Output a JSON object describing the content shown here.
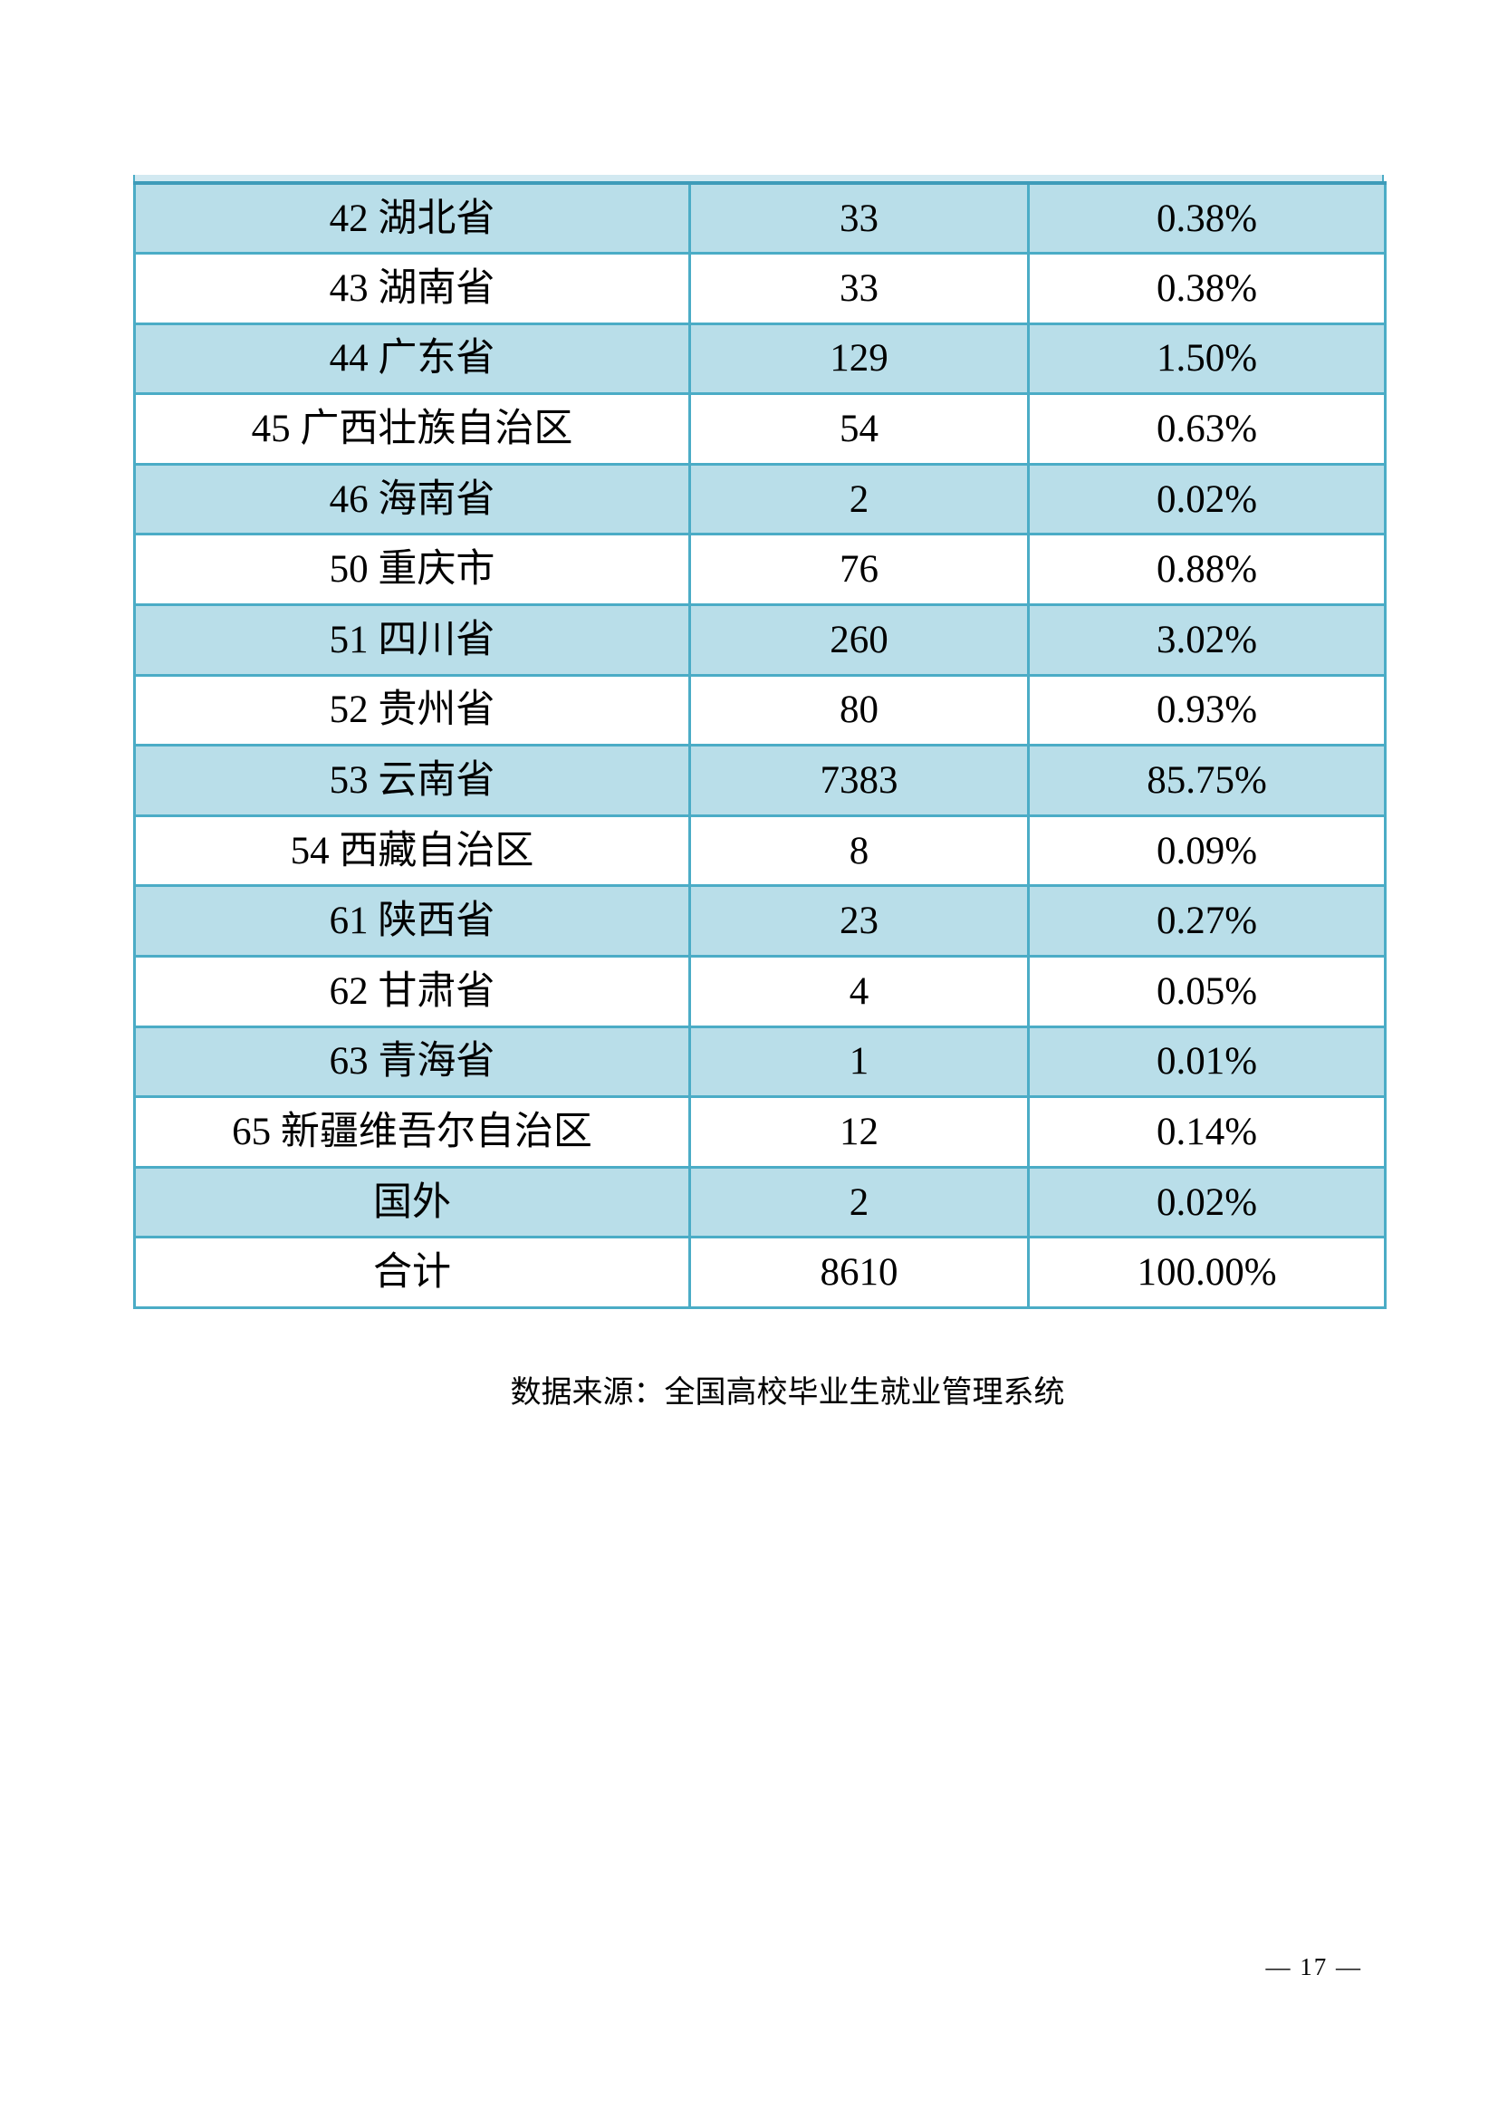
{
  "page": {
    "source_note": "数据来源：全国高校毕业生就业管理系统",
    "page_number": "— 17 —"
  },
  "colors": {
    "table_border": "#4BACC6",
    "shaded_row_fill": "#B9DEE9"
  },
  "table": {
    "columns": [
      "region",
      "count",
      "percent"
    ],
    "rows": [
      {
        "region": "42 湖北省",
        "count": "33",
        "percent": "0.38%"
      },
      {
        "region": "43 湖南省",
        "count": "33",
        "percent": "0.38%"
      },
      {
        "region": "44 广东省",
        "count": "129",
        "percent": "1.50%"
      },
      {
        "region": "45 广西壮族自治区",
        "count": "54",
        "percent": "0.63%"
      },
      {
        "region": "46 海南省",
        "count": "2",
        "percent": "0.02%"
      },
      {
        "region": "50 重庆市",
        "count": "76",
        "percent": "0.88%"
      },
      {
        "region": "51 四川省",
        "count": "260",
        "percent": "3.02%"
      },
      {
        "region": "52 贵州省",
        "count": "80",
        "percent": "0.93%"
      },
      {
        "region": "53 云南省",
        "count": "7383",
        "percent": "85.75%"
      },
      {
        "region": "54 西藏自治区",
        "count": "8",
        "percent": "0.09%"
      },
      {
        "region": "61 陕西省",
        "count": "23",
        "percent": "0.27%"
      },
      {
        "region": "62 甘肃省",
        "count": "4",
        "percent": "0.05%"
      },
      {
        "region": "63 青海省",
        "count": "1",
        "percent": "0.01%"
      },
      {
        "region": "65 新疆维吾尔自治区",
        "count": "12",
        "percent": "0.14%"
      },
      {
        "region": "国外",
        "count": "2",
        "percent": "0.02%"
      },
      {
        "region": "合计",
        "count": "8610",
        "percent": "100.00%"
      }
    ]
  }
}
